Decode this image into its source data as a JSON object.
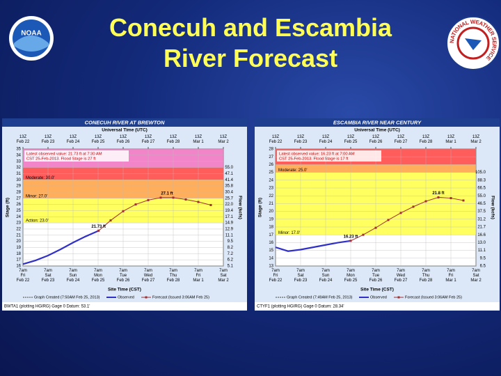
{
  "slide": {
    "title": "Conecuh and Escambia\nRiver Forecast"
  },
  "logos": {
    "left": "NOAA",
    "right": "NATIONAL WEATHER SERVICE"
  },
  "chart_data": [
    {
      "type": "line",
      "title": "CONECUH RIVER AT BREWTON",
      "top_axis_label": "Universal Time (UTC)",
      "xlabel": "Site Time (CST)",
      "ylabel": "Stage (ft)",
      "y2label": "Flow (kcfs)",
      "xlim": [
        0,
        8
      ],
      "top_xticks": [
        {
          "value": 0,
          "label": "13Z\nFeb 22"
        },
        {
          "value": 1,
          "label": "13Z\nFeb 23"
        },
        {
          "value": 2,
          "label": "13Z\nFeb 24"
        },
        {
          "value": 3,
          "label": "13Z\nFeb 25"
        },
        {
          "value": 4,
          "label": "13Z\nFeb 26"
        },
        {
          "value": 5,
          "label": "13Z\nFeb 27"
        },
        {
          "value": 6,
          "label": "13Z\nFeb 28"
        },
        {
          "value": 7,
          "label": "13Z\nMar 1"
        },
        {
          "value": 8,
          "label": "13Z\nMar 2"
        }
      ],
      "xticks": [
        {
          "value": 0,
          "label": "7am\nFri\nFeb 22"
        },
        {
          "value": 1,
          "label": "7am\nSat\nFeb 23"
        },
        {
          "value": 2,
          "label": "7am\nSun\nFeb 24"
        },
        {
          "value": 3,
          "label": "7am\nMon\nFeb 25"
        },
        {
          "value": 4,
          "label": "7am\nTue\nFeb 26"
        },
        {
          "value": 5,
          "label": "7am\nWed\nFeb 27"
        },
        {
          "value": 6,
          "label": "7am\nThu\nFeb 28"
        },
        {
          "value": 7,
          "label": "7am\nFri\nMar 1"
        },
        {
          "value": 8,
          "label": "7am\nSat\nMar 2"
        }
      ],
      "ylim": [
        16,
        35
      ],
      "yticks": [
        16,
        17,
        18,
        19,
        20,
        21,
        22,
        23,
        24,
        25,
        26,
        27,
        28,
        29,
        30,
        31,
        32,
        33,
        34,
        35
      ],
      "flow_ticks": [
        {
          "stage": 16,
          "label": "5.1"
        },
        {
          "stage": 17,
          "label": "6.2"
        },
        {
          "stage": 18,
          "label": "7.2"
        },
        {
          "stage": 19,
          "label": "8.2"
        },
        {
          "stage": 20,
          "label": "9.5"
        },
        {
          "stage": 21,
          "label": "11.1"
        },
        {
          "stage": 22,
          "label": "12.9"
        },
        {
          "stage": 23,
          "label": "14.9"
        },
        {
          "stage": 24,
          "label": "17.1"
        },
        {
          "stage": 25,
          "label": "19.4"
        },
        {
          "stage": 26,
          "label": "22.0"
        },
        {
          "stage": 27,
          "label": "25.7"
        },
        {
          "stage": 28,
          "label": "30.4"
        },
        {
          "stage": 29,
          "label": "35.8"
        },
        {
          "stage": 30,
          "label": "41.4"
        },
        {
          "stage": 31,
          "label": "47.1"
        },
        {
          "stage": 32,
          "label": "55.0"
        }
      ],
      "bands": [
        {
          "from": 23,
          "to": 27,
          "color": "#ffff44",
          "label": "Action: 23.0'"
        },
        {
          "from": 27,
          "to": 30,
          "color": "#ffa040",
          "label": "Minor: 27.0'"
        },
        {
          "from": 30,
          "to": 32,
          "color": "#ff4040",
          "label": "Moderate: 30.0'"
        },
        {
          "from": 32,
          "to": 35,
          "color": "#f070c0"
        }
      ],
      "grid": true,
      "annotation": [
        "Latest observed value: 21.73 ft at 7:30 AM",
        "CST 25-Feb-2013. Flood Stage is 27 ft"
      ],
      "series": [
        {
          "name": "Observed",
          "color": "#3030c8",
          "x": [
            0,
            0.5,
            1,
            1.5,
            2,
            2.5,
            3.02
          ],
          "values": [
            16.3,
            16.9,
            17.7,
            18.7,
            19.8,
            20.8,
            21.73
          ]
        },
        {
          "name": "Forecast (Issued 3:06AM Feb 25)",
          "color": "#a03030",
          "x": [
            3.02,
            3.5,
            4,
            4.5,
            5,
            5.5,
            6,
            6.5,
            7,
            7.5
          ],
          "values": [
            21.73,
            23.4,
            24.9,
            26.0,
            26.7,
            27.1,
            27.1,
            26.8,
            26.4,
            25.9
          ]
        }
      ],
      "point_labels": [
        {
          "x": 3.02,
          "y": 21.73,
          "label": "21.73 ft"
        },
        {
          "x": 5.75,
          "y": 27.1,
          "label": "27.1 ft"
        }
      ],
      "legend_note": "Graph Created (7:50AM Feb 25, 2013)",
      "footer": "BWTA1 (plotting HGIRG) Gage 0 Datum: 53.1'"
    },
    {
      "type": "line",
      "title": "ESCAMBIA RIVER NEAR CENTURY",
      "top_axis_label": "Universal Time (UTC)",
      "xlabel": "Site Time (CST)",
      "ylabel": "Stage (ft)",
      "y2label": "Flow (kcfs)",
      "xlim": [
        0,
        8
      ],
      "top_xticks": [
        {
          "value": 0,
          "label": "13Z\nFeb 22"
        },
        {
          "value": 1,
          "label": "13Z\nFeb 23"
        },
        {
          "value": 2,
          "label": "13Z\nFeb 24"
        },
        {
          "value": 3,
          "label": "13Z\nFeb 25"
        },
        {
          "value": 4,
          "label": "13Z\nFeb 26"
        },
        {
          "value": 5,
          "label": "13Z\nFeb 27"
        },
        {
          "value": 6,
          "label": "13Z\nFeb 28"
        },
        {
          "value": 7,
          "label": "13Z\nMar 1"
        },
        {
          "value": 8,
          "label": "13Z\nMar 2"
        }
      ],
      "xticks": [
        {
          "value": 0,
          "label": "7am\nFri\nFeb 22"
        },
        {
          "value": 1,
          "label": "7am\nSat\nFeb 23"
        },
        {
          "value": 2,
          "label": "7am\nSun\nFeb 24"
        },
        {
          "value": 3,
          "label": "7am\nMon\nFeb 25"
        },
        {
          "value": 4,
          "label": "7am\nTue\nFeb 26"
        },
        {
          "value": 5,
          "label": "7am\nWed\nFeb 27"
        },
        {
          "value": 6,
          "label": "7am\nThu\nFeb 28"
        },
        {
          "value": 7,
          "label": "7am\nFri\nMar 1"
        },
        {
          "value": 8,
          "label": "7am\nSat\nMar 2"
        }
      ],
      "ylim": [
        13,
        28
      ],
      "yticks": [
        13,
        14,
        15,
        16,
        17,
        18,
        19,
        20,
        21,
        22,
        23,
        24,
        25,
        26,
        27,
        28
      ],
      "flow_ticks": [
        {
          "stage": 13,
          "label": "6.5"
        },
        {
          "stage": 14,
          "label": "9.5"
        },
        {
          "stage": 15,
          "label": "11.1"
        },
        {
          "stage": 16,
          "label": "13.0"
        },
        {
          "stage": 17,
          "label": "16.6"
        },
        {
          "stage": 18,
          "label": "21.7"
        },
        {
          "stage": 19,
          "label": "31.2"
        },
        {
          "stage": 20,
          "label": "37.5"
        },
        {
          "stage": 21,
          "label": "46.5"
        },
        {
          "stage": 22,
          "label": "55.0"
        },
        {
          "stage": 23,
          "label": "66.5"
        },
        {
          "stage": 24,
          "label": "88.3"
        },
        {
          "stage": 25,
          "label": "105.0"
        }
      ],
      "bands": [
        {
          "from": 17,
          "to": 25,
          "color": "#ffff44",
          "label": "Minor: 17.0'"
        },
        {
          "from": 25,
          "to": 26,
          "color": "#ffa040",
          "label": "Moderate: 25.0'"
        },
        {
          "from": 26,
          "to": 28,
          "color": "#ff4040"
        }
      ],
      "grid": true,
      "annotation": [
        "Latest observed value: 16.23 ft at 7:00 AM",
        "CST 25-Feb-2013. Flood Stage is 17 ft"
      ],
      "series": [
        {
          "name": "Observed",
          "color": "#3030c8",
          "x": [
            0,
            0.5,
            1,
            1.5,
            2,
            2.5,
            3
          ],
          "values": [
            15.4,
            14.9,
            15.1,
            15.4,
            15.7,
            16.0,
            16.23
          ]
        },
        {
          "name": "Forecast (Issued 3:06AM Feb 25)",
          "color": "#a03030",
          "x": [
            3,
            3.5,
            4,
            4.5,
            5,
            5.5,
            6,
            6.5,
            7,
            7.5
          ],
          "values": [
            16.23,
            17.0,
            17.9,
            18.9,
            19.8,
            20.6,
            21.3,
            21.8,
            21.7,
            21.4
          ]
        }
      ],
      "point_labels": [
        {
          "x": 3,
          "y": 16.23,
          "label": "16.23 ft"
        },
        {
          "x": 6.5,
          "y": 21.8,
          "label": "21.8 ft"
        }
      ],
      "legend_note": "Graph Created (7:49AM Feb 25, 2013)",
      "footer": "CTYF1 (plotting HGIRG) Gage 0 Datum: 28.34'"
    }
  ]
}
